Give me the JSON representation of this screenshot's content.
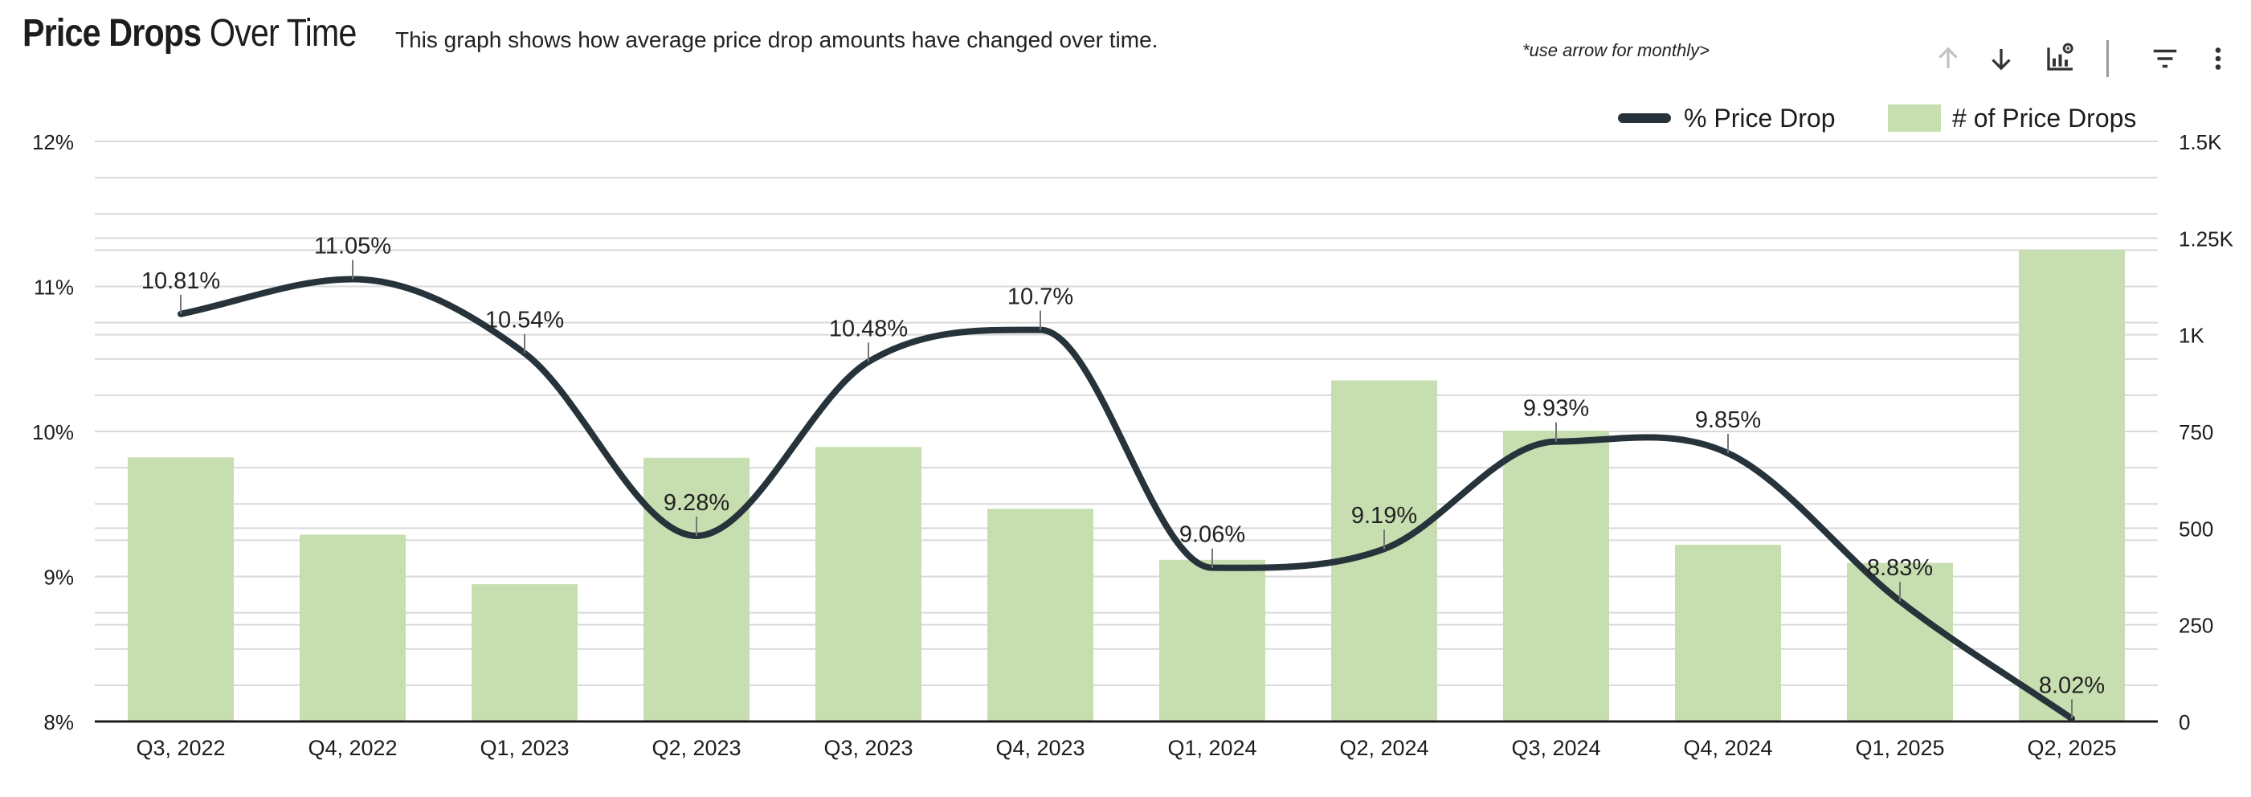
{
  "header": {
    "title_bold": "Price Drops",
    "title_light": "Over Time",
    "description": "This graph shows how average price drop amounts have changed over time.",
    "hint": "*use arrow for monthly>"
  },
  "toolbar": {
    "icons": [
      "arrow-up-icon",
      "arrow-down-icon",
      "chart-settings-icon",
      "filter-icon",
      "more-vert-icon"
    ]
  },
  "colors": {
    "bar": "#c7deb0",
    "line": "#26333a",
    "grid": "#d9d9d9",
    "axis": "#1d1d1d"
  },
  "chart_data": {
    "type": "bar",
    "title": "Price Drops Over Time",
    "categories": [
      "Q3, 2022",
      "Q4, 2022",
      "Q1, 2023",
      "Q2, 2023",
      "Q3, 2023",
      "Q4, 2023",
      "Q1, 2024",
      "Q2, 2024",
      "Q3, 2024",
      "Q4, 2024",
      "Q1, 2025",
      "Q2, 2025"
    ],
    "series": [
      {
        "name": "# of Price Drops",
        "type": "bar",
        "axis": "right",
        "values": [
          683,
          483,
          355,
          682,
          710,
          550,
          418,
          882,
          752,
          457,
          410,
          1220
        ]
      },
      {
        "name": "% Price Drop",
        "type": "line",
        "axis": "left",
        "values": [
          10.81,
          11.05,
          10.54,
          9.28,
          10.48,
          10.7,
          9.06,
          9.19,
          9.93,
          9.85,
          8.83,
          8.02
        ],
        "labels": [
          "10.81%",
          "11.05%",
          "10.54%",
          "9.28%",
          "10.48%",
          "10.7%",
          "9.06%",
          "9.19%",
          "9.93%",
          "9.85%",
          "8.83%",
          "8.02%"
        ]
      }
    ],
    "y_left": {
      "min": 8,
      "max": 12,
      "ticks": [
        8,
        9,
        10,
        11,
        12
      ],
      "tick_labels": [
        "8%",
        "9%",
        "10%",
        "11%",
        "12%"
      ]
    },
    "y_right": {
      "min": 0,
      "max": 1500,
      "ticks": [
        0,
        250,
        500,
        750,
        1000,
        1250,
        1500
      ],
      "tick_labels": [
        "0",
        "250",
        "500",
        "750",
        "1K",
        "1.25K",
        "1.5K"
      ]
    },
    "legend": [
      {
        "name": "% Price Drop",
        "kind": "line"
      },
      {
        "name": "# of Price Drops",
        "kind": "bar"
      }
    ],
    "legend_position": "top-right",
    "grid": true
  }
}
